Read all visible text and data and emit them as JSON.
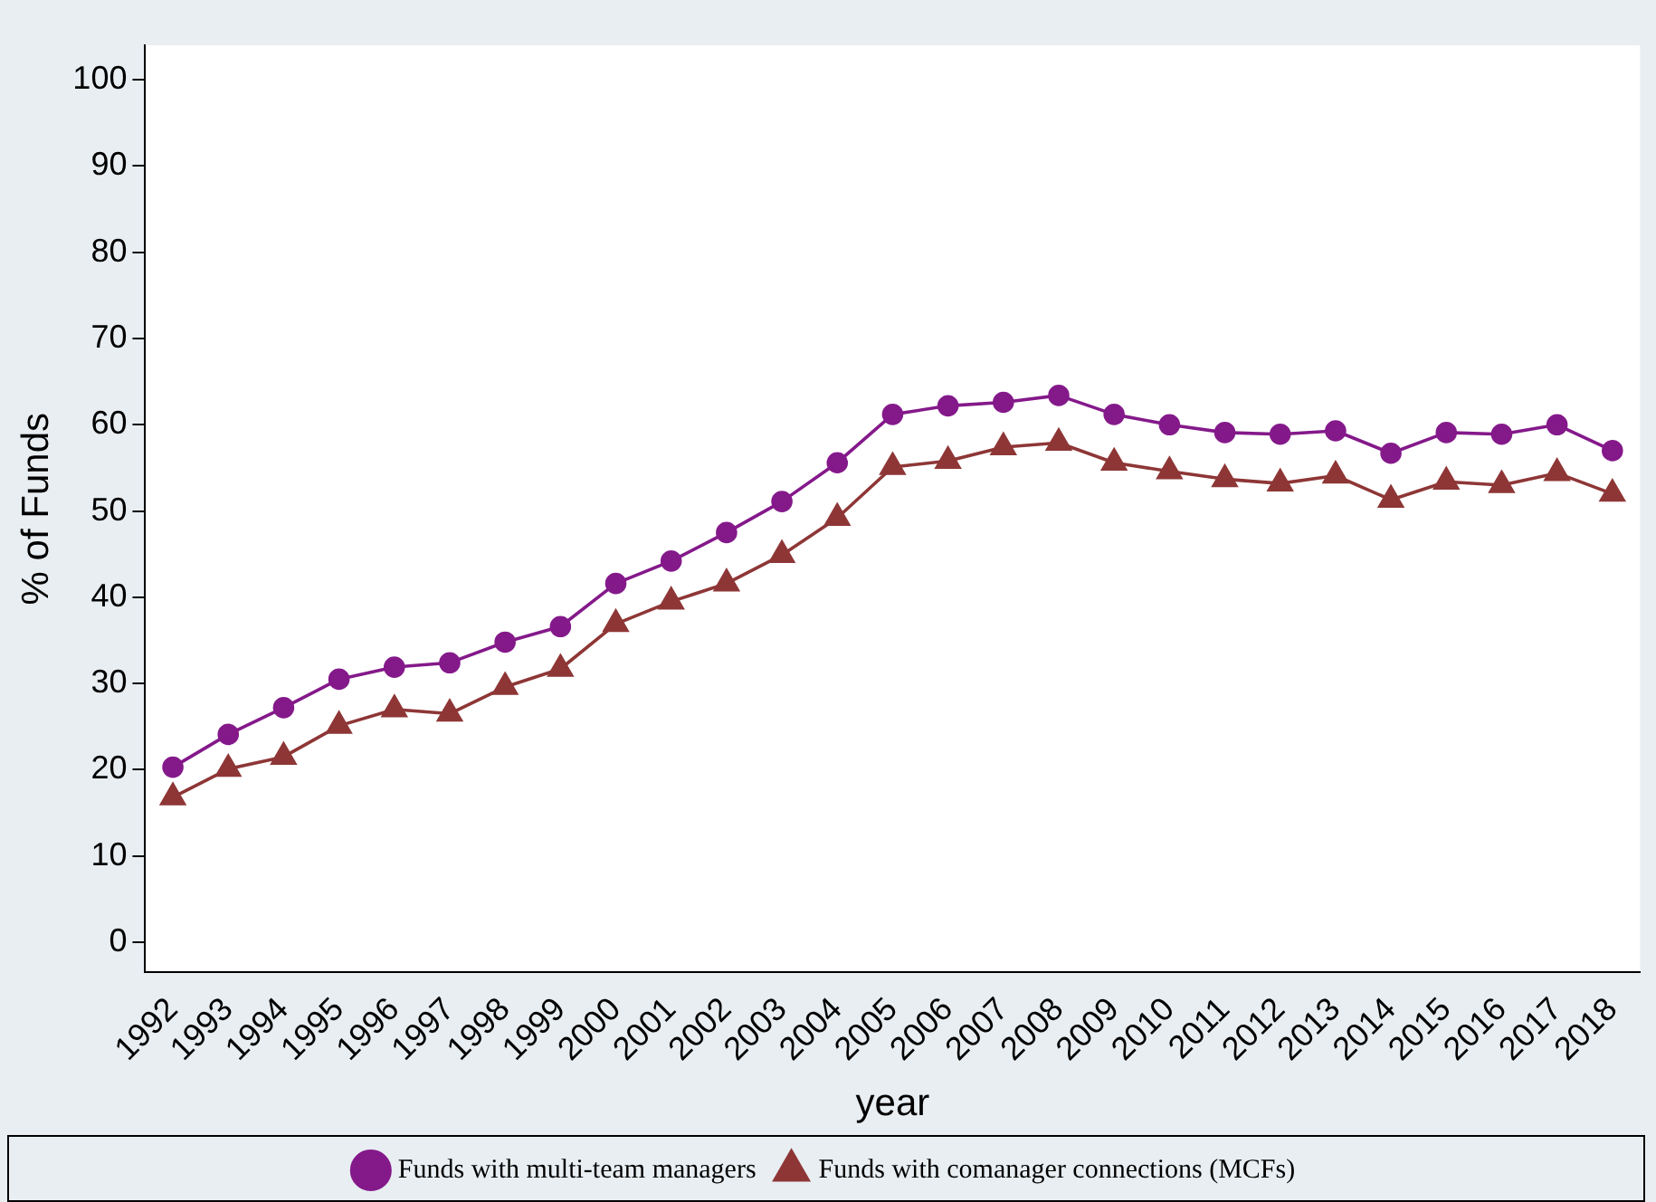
{
  "chart_data": {
    "type": "line",
    "xlabel": "year",
    "ylabel": "% of Funds",
    "categories": [
      "1992",
      "1993",
      "1994",
      "1995",
      "1996",
      "1997",
      "1998",
      "1999",
      "2000",
      "2001",
      "2002",
      "2003",
      "2004",
      "2005",
      "2006",
      "2007",
      "2008",
      "2009",
      "2010",
      "2011",
      "2012",
      "2013",
      "2014",
      "2015",
      "2016",
      "2017",
      "2018"
    ],
    "series": [
      {
        "name": "Funds with multi-team managers",
        "color": "#84198a",
        "marker": "circle",
        "values": [
          20.3,
          24.1,
          27.2,
          30.5,
          31.9,
          32.4,
          34.8,
          36.6,
          41.6,
          44.2,
          47.5,
          51.1,
          55.6,
          61.2,
          62.2,
          62.6,
          63.4,
          61.2,
          60,
          59.1,
          58.9,
          59.3,
          56.7,
          59.1,
          58.9,
          60,
          57
        ]
      },
      {
        "name": "Funds with comanager connections (MCFs)",
        "color": "#8e3636",
        "marker": "triangle",
        "values": [
          16.8,
          20.1,
          21.5,
          25.1,
          27,
          26.5,
          29.6,
          31.7,
          36.9,
          39.5,
          41.6,
          44.9,
          49.2,
          55.1,
          55.8,
          57.4,
          57.9,
          55.6,
          54.6,
          53.7,
          53.2,
          54.1,
          51.3,
          53.4,
          53,
          54.4,
          52
        ]
      }
    ],
    "ylim": [
      -3.5,
      104
    ],
    "yticks": [
      0,
      10,
      20,
      30,
      40,
      50,
      60,
      70,
      80,
      90,
      100
    ],
    "grid": false,
    "legend": "bottom",
    "line_style": "solid"
  }
}
